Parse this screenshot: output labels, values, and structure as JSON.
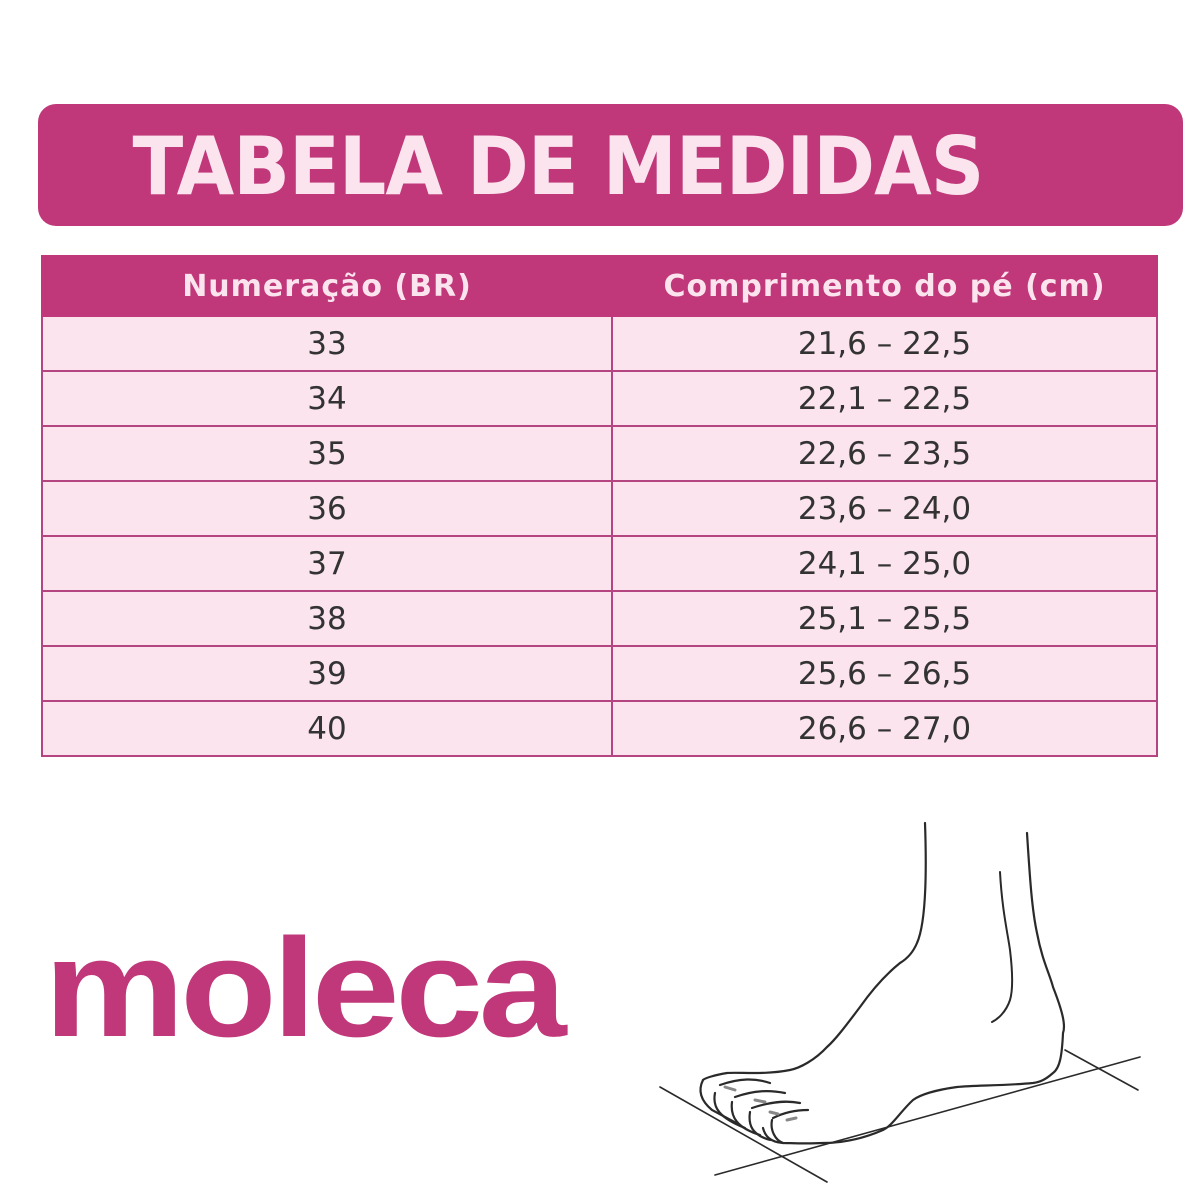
{
  "title": "TABELA DE MEDIDAS",
  "table": {
    "headers": [
      "Numeração (BR)",
      "Comprimento do pé (cm)"
    ],
    "rows": [
      [
        "33",
        "21,6 – 22,5"
      ],
      [
        "34",
        "22,1 – 22,5"
      ],
      [
        "35",
        "22,6 – 23,5"
      ],
      [
        "36",
        "23,6 – 24,0"
      ],
      [
        "37",
        "24,1 – 25,0"
      ],
      [
        "38",
        "25,1 – 25,5"
      ],
      [
        "39",
        "25,6 – 26,5"
      ],
      [
        "40",
        "26,6 – 27,0"
      ]
    ]
  },
  "logo": "moleca",
  "colors": {
    "brand": "#c0387a",
    "row_bg": "#fbe4ee",
    "text": "#333333"
  }
}
